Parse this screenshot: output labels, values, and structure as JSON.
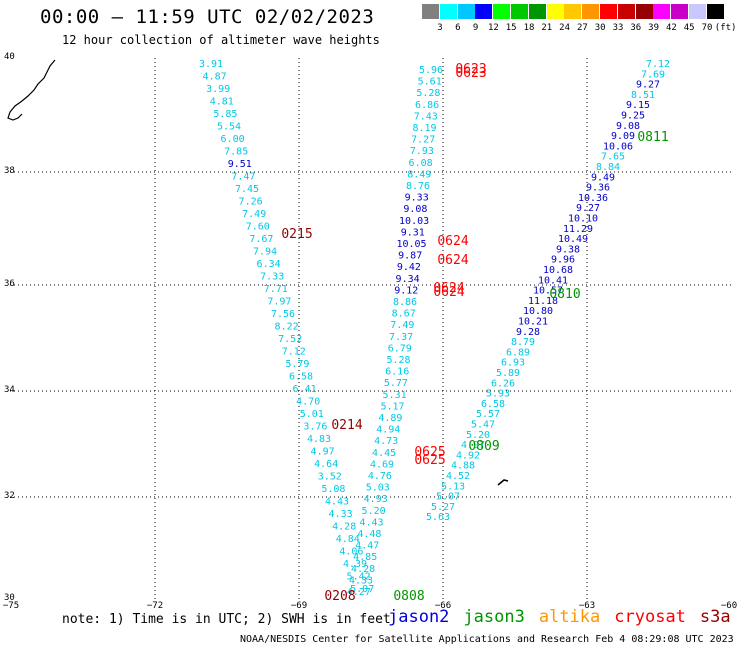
{
  "header": {
    "title": "00:00 – 11:59 UTC 02/02/2023",
    "subtitle": "12 hour collection of altimeter wave heights"
  },
  "colorbar": {
    "labels": [
      "3",
      "6",
      "9",
      "12",
      "15",
      "18",
      "21",
      "24",
      "27",
      "30",
      "33",
      "36",
      "39",
      "42",
      "45",
      "70",
      "(ft)"
    ],
    "colors": [
      "#808080",
      "#00ffff",
      "#00c8ff",
      "#0000ff",
      "#00ff00",
      "#00c800",
      "#009600",
      "#ffff00",
      "#ffc800",
      "#ff9600",
      "#ff0000",
      "#c80000",
      "#960000",
      "#ff00ff",
      "#c800c8",
      "#c8c8ff",
      "#000000"
    ]
  },
  "axes": {
    "lat_labels": [
      "40",
      "38",
      "36",
      "34",
      "32",
      "30"
    ],
    "lon_labels": [
      "−75",
      "−72",
      "−69",
      "−66",
      "−63",
      "−60"
    ],
    "grid": true
  },
  "tracks": {
    "left": [
      "3.91",
      "4.87",
      "3.99",
      "4.81",
      "5.85",
      "5.54",
      "6.00",
      "7.85",
      "9.51",
      "7.47",
      "7.45",
      "7.26",
      "7.49",
      "7.60",
      "7.67",
      "7.94",
      "6.34",
      "7.33",
      "7.71",
      "7.97",
      "7.56",
      "8.22",
      "7.52",
      "7.12",
      "5.79",
      "6.58",
      "6.41",
      "4.70",
      "5.01",
      "3.76",
      "4.83",
      "4.97",
      "4.64",
      "3.52",
      "5.08",
      "4.43",
      "4.33",
      "4.28",
      "4.84",
      "4.06",
      "4.39",
      "5.42",
      "5.07"
    ],
    "middle": [
      "5.96",
      "5.61",
      "5.28",
      "6.86",
      "7.43",
      "8.19",
      "7.27",
      "7.93",
      "6.08",
      "8.49",
      "8.76",
      "9.33",
      "9.08",
      "10.03",
      "9.31",
      "10.05",
      "9.87",
      "9.42",
      "9.34",
      "9.12",
      "8.86",
      "8.67",
      "7.49",
      "7.37",
      "6.79",
      "5.28",
      "6.16",
      "5.77",
      "5.31",
      "5.17",
      "4.89",
      "4.94",
      "4.73",
      "4.45",
      "4.69",
      "4.76",
      "5.03",
      "4.93",
      "5.20",
      "4.43",
      "4.48",
      "4.47",
      "4.85",
      "4.28",
      "4.33",
      "4.27"
    ],
    "right": [
      "7.12",
      "7.69",
      "9.27",
      "8.51",
      "9.15",
      "9.25",
      "9.08",
      "9.09",
      "10.06",
      "7.65",
      "8.84",
      "9.49",
      "9.36",
      "10.36",
      "9.27",
      "10.10",
      "11.29",
      "10.49",
      "9.38",
      "9.96",
      "10.68",
      "10.41",
      "10.57",
      "11.18",
      "10.80",
      "10.21",
      "9.28",
      "8.79",
      "6.89",
      "6.93",
      "5.89",
      "6.26",
      "5.93",
      "6.58",
      "5.57",
      "5.47",
      "5.20",
      "4.97",
      "4.92",
      "4.88",
      "4.52",
      "5.13",
      "5.07",
      "5.27",
      "5.63"
    ]
  },
  "time_labels": [
    {
      "text": "0623",
      "color": "#ff0000"
    },
    {
      "text": "0623",
      "color": "#ff0000"
    },
    {
      "text": "0215",
      "color": "#960000"
    },
    {
      "text": "0624",
      "color": "#ff0000"
    },
    {
      "text": "0624",
      "color": "#ff0000"
    },
    {
      "text": "0624",
      "color": "#ff0000"
    },
    {
      "text": "0624",
      "color": "#ff0000"
    },
    {
      "text": "0214",
      "color": "#960000"
    },
    {
      "text": "0625",
      "color": "#ff0000"
    },
    {
      "text": "0625",
      "color": "#ff0000"
    },
    {
      "text": "0811",
      "color": "#009600"
    },
    {
      "text": "0810",
      "color": "#009600"
    },
    {
      "text": "0809",
      "color": "#009600"
    },
    {
      "text": "0208",
      "color": "#960000"
    },
    {
      "text": "0808",
      "color": "#009600"
    }
  ],
  "note": "note: 1) Time is in UTC; 2) SWH is in feet",
  "legend": [
    {
      "name": "jason2",
      "color": "#0000dd"
    },
    {
      "name": "jason3",
      "color": "#009600"
    },
    {
      "name": "altika",
      "color": "#ff9600"
    },
    {
      "name": "cryosat",
      "color": "#ff0000"
    },
    {
      "name": "s3a",
      "color": "#960000"
    }
  ],
  "footer": "NOAA/NESDIS Center for Satellite Applications and Research    Feb  4 08:29:08 UTC 2023"
}
